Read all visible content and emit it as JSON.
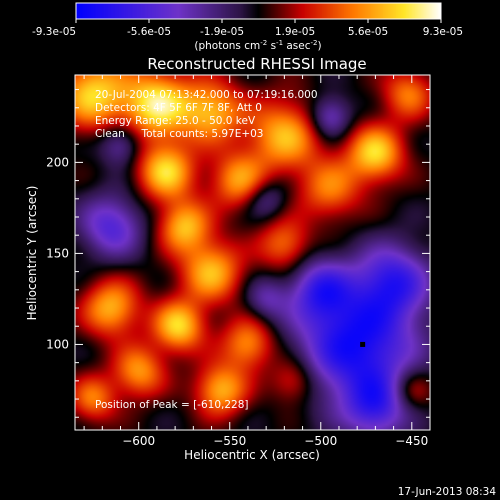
{
  "chart_data": {
    "type": "heatmap",
    "title": "Reconstructed RHESSI Image",
    "xlabel": "Heliocentric X (arcsec)",
    "ylabel": "Heliocentric Y (arcsec)",
    "xlim": [
      -635,
      -440
    ],
    "ylim": [
      53,
      248
    ],
    "x_ticks": [
      -600,
      -550,
      -500,
      -450
    ],
    "y_ticks": [
      100,
      150,
      200
    ],
    "colorbar": {
      "ticks": [
        "-9.3e-05",
        "-5.6e-05",
        "-1.9e-05",
        "1.9e-05",
        "5.6e-05",
        "9.3e-05"
      ],
      "range": [
        -9.3e-05,
        9.3e-05
      ],
      "unit_base": "(photons cm",
      "unit_sup1": "-2",
      "unit_mid": " s",
      "unit_sup2": "-1",
      "unit_mid2": " asec",
      "unit_sup3": "-2",
      "unit_end": ")"
    },
    "annotations": [
      "20-Jul-2004 07:13:42.000 to 07:19:16.000",
      "Detectors: 4F 5F 6F 7F 8F, Att 0",
      "Energy Range: 25.0 - 50.0 keV",
      "Clean     Total counts: 5.97E+03"
    ],
    "peak_label": "Position of Peak = [-610,228]",
    "marker": {
      "x": -477,
      "y": 100
    },
    "sources": [
      {
        "x": -625,
        "y": 238,
        "sigma": 14,
        "amp": 0.9
      },
      {
        "x": -590,
        "y": 232,
        "sigma": 13,
        "amp": 1.0
      },
      {
        "x": -560,
        "y": 228,
        "sigma": 12,
        "amp": 0.8
      },
      {
        "x": -520,
        "y": 215,
        "sigma": 14,
        "amp": 0.8
      },
      {
        "x": -495,
        "y": 185,
        "sigma": 12,
        "amp": 0.6
      },
      {
        "x": -470,
        "y": 205,
        "sigma": 11,
        "amp": 0.9
      },
      {
        "x": -452,
        "y": 238,
        "sigma": 10,
        "amp": 0.6
      },
      {
        "x": -545,
        "y": 190,
        "sigma": 11,
        "amp": 0.7
      },
      {
        "x": -585,
        "y": 195,
        "sigma": 11,
        "amp": 0.9
      },
      {
        "x": -575,
        "y": 165,
        "sigma": 10,
        "amp": 0.8
      },
      {
        "x": -560,
        "y": 140,
        "sigma": 12,
        "amp": 0.8
      },
      {
        "x": -520,
        "y": 155,
        "sigma": 10,
        "amp": 0.6
      },
      {
        "x": -615,
        "y": 120,
        "sigma": 11,
        "amp": 0.8
      },
      {
        "x": -578,
        "y": 110,
        "sigma": 10,
        "amp": 0.9
      },
      {
        "x": -540,
        "y": 100,
        "sigma": 10,
        "amp": 0.7
      },
      {
        "x": -600,
        "y": 85,
        "sigma": 10,
        "amp": 0.7
      },
      {
        "x": -555,
        "y": 75,
        "sigma": 10,
        "amp": 0.8
      },
      {
        "x": -515,
        "y": 80,
        "sigma": 9,
        "amp": 0.5
      },
      {
        "x": -625,
        "y": 70,
        "sigma": 9,
        "amp": 0.6
      },
      {
        "x": -450,
        "y": 75,
        "sigma": 8,
        "amp": 0.4
      },
      {
        "x": -615,
        "y": 165,
        "sigma": 12,
        "amp": -0.7
      },
      {
        "x": -610,
        "y": 210,
        "sigma": 8,
        "amp": -0.5
      },
      {
        "x": -495,
        "y": 225,
        "sigma": 8,
        "amp": -0.6
      },
      {
        "x": -530,
        "y": 180,
        "sigma": 8,
        "amp": -0.4
      },
      {
        "x": -480,
        "y": 100,
        "sigma": 22,
        "amp": -1.1
      },
      {
        "x": -460,
        "y": 135,
        "sigma": 14,
        "amp": -0.8
      },
      {
        "x": -500,
        "y": 130,
        "sigma": 12,
        "amp": -0.7
      },
      {
        "x": -470,
        "y": 65,
        "sigma": 12,
        "amp": -0.7
      },
      {
        "x": -530,
        "y": 125,
        "sigma": 8,
        "amp": -0.4
      }
    ]
  },
  "footer_timestamp": "17-Jun-2013 08:34"
}
